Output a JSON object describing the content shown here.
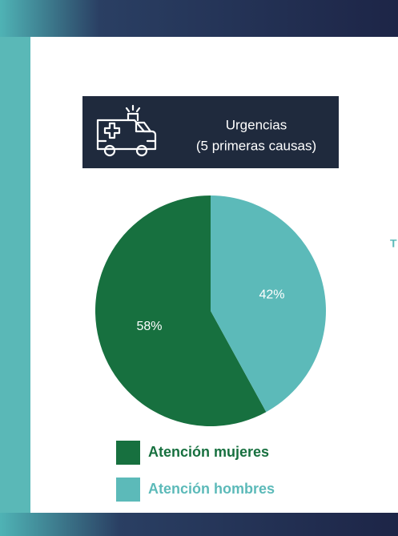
{
  "header": {
    "title": "Urgencias",
    "subtitle": "(5 primeras causas)"
  },
  "side_text": "T",
  "chart_data": {
    "type": "pie",
    "categories": [
      "Atención mujeres",
      "Atención hombres"
    ],
    "values": [
      58,
      42
    ],
    "value_labels": [
      "58%",
      "42%"
    ],
    "colors": [
      "#17703f",
      "#5cbab9"
    ]
  }
}
